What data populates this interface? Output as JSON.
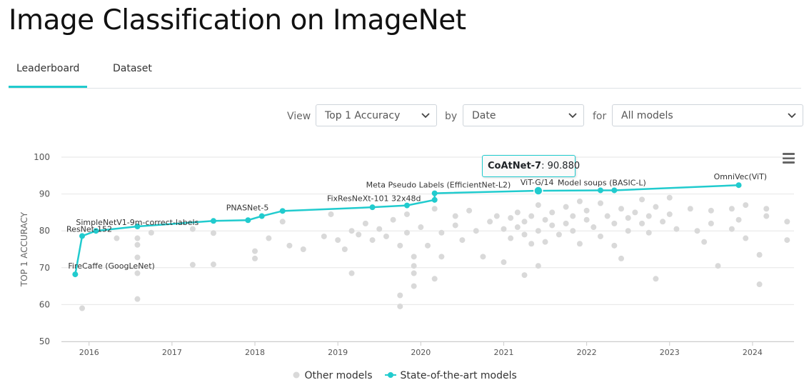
{
  "page": {
    "title": "Image Classification on ImageNet",
    "tabs": [
      {
        "label": "Leaderboard",
        "active": true
      },
      {
        "label": "Dataset",
        "active": false
      }
    ]
  },
  "controls": {
    "view_label": "View",
    "view_value": "Top 1 Accuracy",
    "by_label": "by",
    "by_value": "Date",
    "for_label": "for",
    "for_value": "All models"
  },
  "tooltip": {
    "model": "CoAtNet-7",
    "value": "90.880"
  },
  "colors": {
    "accent": "#21cbce",
    "other": "#d9d9d9",
    "grid": "#e6e6e6"
  },
  "icons": {
    "menu": "hamburger-menu-icon",
    "dropdown": "chevron-down-icon"
  },
  "chart_data": {
    "type": "scatter",
    "ylabel": "TOP 1 ACCURACY",
    "xlabel": "",
    "ylim": [
      50,
      100
    ],
    "xlim": [
      "2015-09",
      "2024-07"
    ],
    "yticks": [
      50,
      60,
      70,
      80,
      90,
      100
    ],
    "xticks": [
      "2016",
      "2017",
      "2018",
      "2019",
      "2020",
      "2021",
      "2022",
      "2023",
      "2024"
    ],
    "grid": true,
    "legend_position": "bottom",
    "legend": [
      "Other models",
      "State-of-the-art models"
    ],
    "series": [
      {
        "name": "State-of-the-art models",
        "style": "line",
        "points": [
          {
            "date": "2015-11",
            "y": 68.2
          },
          {
            "date": "2015-12",
            "y": 78.6
          },
          {
            "date": "2016-02",
            "y": 80.0
          },
          {
            "date": "2016-08",
            "y": 81.2
          },
          {
            "date": "2017-07",
            "y": 82.7
          },
          {
            "date": "2017-12",
            "y": 82.9
          },
          {
            "date": "2018-02",
            "y": 84.0
          },
          {
            "date": "2018-05",
            "y": 85.4
          },
          {
            "date": "2019-06",
            "y": 86.4
          },
          {
            "date": "2019-11",
            "y": 86.9
          },
          {
            "date": "2020-03",
            "y": 88.4
          },
          {
            "date": "2020-03",
            "y": 90.2
          },
          {
            "date": "2021-06",
            "y": 90.88
          },
          {
            "date": "2022-03",
            "y": 91.0
          },
          {
            "date": "2022-05",
            "y": 91.0
          },
          {
            "date": "2023-11",
            "y": 92.4
          }
        ],
        "labels": [
          {
            "text": "FireCaffe (GoogLeNet)",
            "point": 0
          },
          {
            "text": "ResNet-152",
            "point": 1
          },
          {
            "text": "SimpleNetV1-9m-correct-labels",
            "point": 2
          },
          {
            "text": "PNASNet-5",
            "point": 6
          },
          {
            "text": "FixResNeXt-101 32x48d",
            "point": 9
          },
          {
            "text": "Meta Pseudo Labels (EfficientNet-L2)",
            "point": 11
          },
          {
            "text": "ViT-G/14",
            "point": 12
          },
          {
            "text": "Model soups (BASIC-L)",
            "point": 13
          },
          {
            "text": "OmniVec(ViT)",
            "point": 15
          }
        ]
      },
      {
        "name": "Other models",
        "style": "scatter",
        "points": [
          {
            "date": "2015-12",
            "y": 59.0
          },
          {
            "date": "2016-08",
            "y": 61.5
          },
          {
            "date": "2016-08",
            "y": 68.5
          },
          {
            "date": "2016-08",
            "y": 72.8
          },
          {
            "date": "2016-08",
            "y": 76.2
          },
          {
            "date": "2016-08",
            "y": 78.0
          },
          {
            "date": "2016-05",
            "y": 78.0
          },
          {
            "date": "2016-10",
            "y": 79.5
          },
          {
            "date": "2017-04",
            "y": 70.8
          },
          {
            "date": "2017-04",
            "y": 80.5
          },
          {
            "date": "2017-07",
            "y": 70.9
          },
          {
            "date": "2017-07",
            "y": 79.4
          },
          {
            "date": "2018-01",
            "y": 72.5
          },
          {
            "date": "2018-01",
            "y": 74.5
          },
          {
            "date": "2018-03",
            "y": 78.0
          },
          {
            "date": "2018-05",
            "y": 82.5
          },
          {
            "date": "2018-06",
            "y": 76.0
          },
          {
            "date": "2018-08",
            "y": 75.0
          },
          {
            "date": "2018-11",
            "y": 78.5
          },
          {
            "date": "2018-12",
            "y": 84.5
          },
          {
            "date": "2019-01",
            "y": 77.5
          },
          {
            "date": "2019-02",
            "y": 75.0
          },
          {
            "date": "2019-03",
            "y": 68.5
          },
          {
            "date": "2019-03",
            "y": 80.0
          },
          {
            "date": "2019-04",
            "y": 79.0
          },
          {
            "date": "2019-05",
            "y": 82.0
          },
          {
            "date": "2019-06",
            "y": 77.5
          },
          {
            "date": "2019-07",
            "y": 80.5
          },
          {
            "date": "2019-08",
            "y": 78.5
          },
          {
            "date": "2019-09",
            "y": 83.0
          },
          {
            "date": "2019-10",
            "y": 76.0
          },
          {
            "date": "2019-10",
            "y": 59.5
          },
          {
            "date": "2019-10",
            "y": 62.5
          },
          {
            "date": "2019-11",
            "y": 84.5
          },
          {
            "date": "2019-11",
            "y": 79.5
          },
          {
            "date": "2019-12",
            "y": 73.0
          },
          {
            "date": "2019-12",
            "y": 70.5
          },
          {
            "date": "2019-12",
            "y": 68.5
          },
          {
            "date": "2019-12",
            "y": 65.0
          },
          {
            "date": "2020-01",
            "y": 81.0
          },
          {
            "date": "2020-02",
            "y": 76.0
          },
          {
            "date": "2020-03",
            "y": 86.0
          },
          {
            "date": "2020-03",
            "y": 67.0
          },
          {
            "date": "2020-04",
            "y": 79.5
          },
          {
            "date": "2020-04",
            "y": 73.0
          },
          {
            "date": "2020-06",
            "y": 84.0
          },
          {
            "date": "2020-06",
            "y": 81.5
          },
          {
            "date": "2020-07",
            "y": 77.5
          },
          {
            "date": "2020-08",
            "y": 85.5
          },
          {
            "date": "2020-09",
            "y": 80.0
          },
          {
            "date": "2020-10",
            "y": 73.0
          },
          {
            "date": "2020-11",
            "y": 82.5
          },
          {
            "date": "2020-12",
            "y": 84.0
          },
          {
            "date": "2021-01",
            "y": 80.5
          },
          {
            "date": "2021-01",
            "y": 71.5
          },
          {
            "date": "2021-02",
            "y": 83.5
          },
          {
            "date": "2021-02",
            "y": 78.0
          },
          {
            "date": "2021-03",
            "y": 85.0
          },
          {
            "date": "2021-03",
            "y": 81.0
          },
          {
            "date": "2021-04",
            "y": 82.5
          },
          {
            "date": "2021-04",
            "y": 79.0
          },
          {
            "date": "2021-04",
            "y": 68.0
          },
          {
            "date": "2021-05",
            "y": 84.0
          },
          {
            "date": "2021-05",
            "y": 76.5
          },
          {
            "date": "2021-06",
            "y": 87.0
          },
          {
            "date": "2021-06",
            "y": 80.0
          },
          {
            "date": "2021-06",
            "y": 70.5
          },
          {
            "date": "2021-07",
            "y": 83.0
          },
          {
            "date": "2021-07",
            "y": 77.0
          },
          {
            "date": "2021-08",
            "y": 85.0
          },
          {
            "date": "2021-08",
            "y": 81.5
          },
          {
            "date": "2021-09",
            "y": 79.0
          },
          {
            "date": "2021-10",
            "y": 86.5
          },
          {
            "date": "2021-10",
            "y": 82.0
          },
          {
            "date": "2021-11",
            "y": 84.0
          },
          {
            "date": "2021-11",
            "y": 80.0
          },
          {
            "date": "2021-12",
            "y": 88.0
          },
          {
            "date": "2021-12",
            "y": 76.5
          },
          {
            "date": "2022-01",
            "y": 83.0
          },
          {
            "date": "2022-01",
            "y": 85.5
          },
          {
            "date": "2022-02",
            "y": 81.0
          },
          {
            "date": "2022-03",
            "y": 78.5
          },
          {
            "date": "2022-03",
            "y": 87.5
          },
          {
            "date": "2022-04",
            "y": 84.0
          },
          {
            "date": "2022-05",
            "y": 82.0
          },
          {
            "date": "2022-05",
            "y": 76.0
          },
          {
            "date": "2022-06",
            "y": 86.0
          },
          {
            "date": "2022-06",
            "y": 72.5
          },
          {
            "date": "2022-07",
            "y": 83.5
          },
          {
            "date": "2022-07",
            "y": 80.0
          },
          {
            "date": "2022-08",
            "y": 85.0
          },
          {
            "date": "2022-09",
            "y": 82.0
          },
          {
            "date": "2022-09",
            "y": 88.5
          },
          {
            "date": "2022-10",
            "y": 79.5
          },
          {
            "date": "2022-10",
            "y": 84.0
          },
          {
            "date": "2022-11",
            "y": 67.0
          },
          {
            "date": "2022-11",
            "y": 86.5
          },
          {
            "date": "2022-12",
            "y": 82.5
          },
          {
            "date": "2023-01",
            "y": 89.0
          },
          {
            "date": "2023-01",
            "y": 84.5
          },
          {
            "date": "2023-02",
            "y": 80.5
          },
          {
            "date": "2023-04",
            "y": 86.0
          },
          {
            "date": "2023-05",
            "y": 80.0
          },
          {
            "date": "2023-06",
            "y": 77.0
          },
          {
            "date": "2023-07",
            "y": 85.5
          },
          {
            "date": "2023-07",
            "y": 82.0
          },
          {
            "date": "2023-08",
            "y": 70.5
          },
          {
            "date": "2023-10",
            "y": 86.0
          },
          {
            "date": "2023-10",
            "y": 80.5
          },
          {
            "date": "2023-11",
            "y": 83.0
          },
          {
            "date": "2023-12",
            "y": 87.0
          },
          {
            "date": "2023-12",
            "y": 78.0
          },
          {
            "date": "2024-02",
            "y": 73.5
          },
          {
            "date": "2024-02",
            "y": 65.5
          },
          {
            "date": "2024-03",
            "y": 86.0
          },
          {
            "date": "2024-03",
            "y": 84.0
          },
          {
            "date": "2024-06",
            "y": 82.5
          },
          {
            "date": "2024-06",
            "y": 77.5
          }
        ]
      }
    ]
  },
  "legend_items": {
    "other": "Other models",
    "sota": "State-of-the-art models"
  }
}
